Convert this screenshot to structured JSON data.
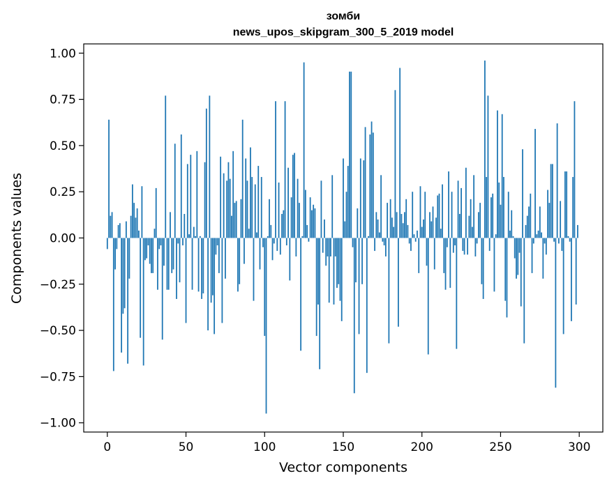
{
  "chart_data": {
    "type": "bar",
    "title": "зомби",
    "subtitle": "news_upos_skipgram_300_5_2019 model",
    "xlabel": "Vector components",
    "ylabel": "Components values",
    "xlim": [
      -15,
      315
    ],
    "ylim": [
      -1.05,
      1.05
    ],
    "xticks": [
      0,
      50,
      100,
      150,
      200,
      250,
      300
    ],
    "xtick_labels": [
      "0",
      "50",
      "100",
      "150",
      "200",
      "250",
      "300"
    ],
    "yticks": [
      1.0,
      0.75,
      0.5,
      0.25,
      0.0,
      -0.25,
      -0.5,
      -0.75,
      -1.0
    ],
    "ytick_labels": [
      "1.00",
      "0.75",
      "0.50",
      "0.25",
      "0.00",
      "−0.25",
      "−0.50",
      "−0.75",
      "−1.00"
    ],
    "bar_color": "#1f77b4",
    "values": [
      -0.06,
      0.64,
      0.12,
      0.14,
      -0.72,
      -0.17,
      -0.06,
      0.07,
      0.08,
      -0.62,
      -0.41,
      -0.38,
      0.09,
      -0.68,
      -0.22,
      0.12,
      0.29,
      0.19,
      0.11,
      0.16,
      0.04,
      -0.54,
      0.28,
      -0.69,
      -0.12,
      -0.11,
      -0.04,
      -0.14,
      -0.19,
      -0.19,
      0.05,
      0.27,
      -0.28,
      -0.06,
      -0.04,
      -0.55,
      -0.15,
      0.77,
      -0.28,
      -0.28,
      0.14,
      -0.19,
      -0.17,
      0.51,
      -0.33,
      -0.03,
      -0.24,
      0.56,
      -0.04,
      0.13,
      -0.46,
      0.4,
      0.02,
      0.45,
      -0.28,
      0.06,
      0.01,
      0.47,
      -0.29,
      0.01,
      -0.33,
      -0.3,
      0.41,
      0.7,
      -0.5,
      0.77,
      -0.35,
      -0.31,
      -0.52,
      -0.09,
      -0.04,
      -0.19,
      0.44,
      -0.46,
      0.35,
      -0.22,
      0.31,
      0.41,
      0.32,
      0.12,
      0.47,
      0.19,
      0.2,
      -0.29,
      -0.25,
      0.21,
      0.64,
      -0.14,
      0.43,
      0.31,
      0.05,
      0.49,
      0.33,
      -0.34,
      0.29,
      0.03,
      0.39,
      -0.17,
      0.33,
      -0.05,
      -0.53,
      -0.95,
      0.01,
      0.21,
      0.07,
      -0.12,
      -0.03,
      0.74,
      -0.07,
      0.3,
      -0.09,
      0.13,
      0.15,
      0.74,
      -0.04,
      0.38,
      -0.23,
      0.22,
      0.45,
      0.46,
      -0.1,
      0.32,
      0.19,
      -0.61,
      0.01,
      0.95,
      0.26,
      0.07,
      -0.02,
      0.22,
      0.15,
      0.18,
      0.16,
      -0.53,
      -0.36,
      -0.71,
      0.31,
      -0.08,
      0.1,
      -0.15,
      -0.1,
      -0.35,
      -0.1,
      0.34,
      -0.36,
      -0.1,
      -0.27,
      -0.25,
      -0.34,
      -0.45,
      0.43,
      0.09,
      0.25,
      0.39,
      0.9,
      0.9,
      -0.05,
      -0.84,
      -0.24,
      0.16,
      -0.52,
      0.43,
      -0.25,
      0.42,
      0.6,
      -0.73,
      0.01,
      0.56,
      0.63,
      0.57,
      -0.07,
      0.14,
      0.1,
      0.03,
      0.34,
      -0.02,
      -0.04,
      -0.1,
      0.19,
      -0.57,
      0.21,
      0.11,
      0.06,
      0.8,
      0.14,
      -0.48,
      0.92,
      0.13,
      0.08,
      0.14,
      0.21,
      0.07,
      -0.03,
      -0.07,
      0.25,
      0.02,
      -0.02,
      0.04,
      -0.19,
      0.28,
      0.06,
      0.1,
      0.25,
      -0.15,
      -0.63,
      0.14,
      0.09,
      0.17,
      -0.17,
      0.11,
      0.23,
      0.24,
      0.05,
      0.29,
      -0.19,
      -0.28,
      -0.05,
      0.36,
      -0.27,
      0.25,
      -0.08,
      -0.04,
      -0.6,
      0.31,
      0.13,
      0.27,
      -0.07,
      -0.09,
      0.38,
      -0.09,
      0.12,
      0.21,
      0.06,
      0.34,
      -0.1,
      -0.03,
      0.14,
      0.19,
      -0.25,
      -0.33,
      0.96,
      0.33,
      0.77,
      -0.07,
      0.22,
      0.24,
      -0.29,
      0.02,
      0.69,
      0.3,
      0.18,
      0.67,
      0.33,
      -0.34,
      -0.43,
      0.25,
      0.04,
      0.15,
      0.01,
      -0.11,
      -0.22,
      -0.2,
      -0.08,
      -0.37,
      0.48,
      -0.57,
      0.07,
      0.12,
      0.17,
      0.24,
      -0.19,
      -0.03,
      0.59,
      0.02,
      0.04,
      0.17,
      0.03,
      -0.22,
      -0.03,
      -0.09,
      0.26,
      0.19,
      0.4,
      0.4,
      -0.02,
      -0.81,
      0.62,
      -0.03,
      0.2,
      -0.07,
      -0.52,
      0.36,
      0.36,
      0.01,
      -0.02,
      -0.45,
      0.33,
      0.74,
      -0.36,
      0.07
    ]
  }
}
